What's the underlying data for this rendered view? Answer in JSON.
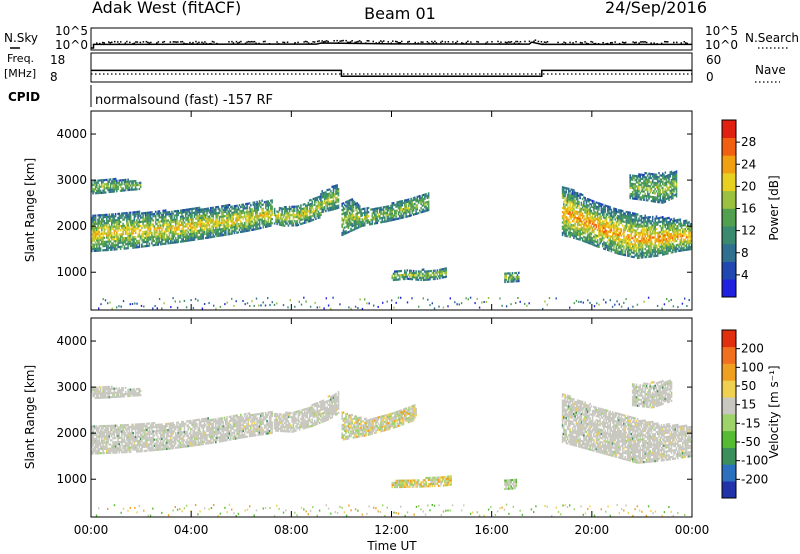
{
  "header": {
    "station": "Adak West (fitACF)",
    "beam": "Beam 01",
    "date": "24/Sep/2016"
  },
  "strips": {
    "nsky_label": "N.Sky",
    "nsearch_label": "N.Search",
    "freq_label_1": "Freq.",
    "freq_label_2": "[MHz]",
    "nave_label": "Nave",
    "cpid_label": "CPID",
    "cpid_text": "normalsound (fast) -157 RF",
    "noise_left_ticks": [
      "10^5",
      "10^0"
    ],
    "noise_right_ticks": [
      "10^5",
      "10^0"
    ],
    "freq_ticks": [
      "18",
      "8"
    ],
    "nave_ticks": [
      "60",
      "0"
    ]
  },
  "colorbars": {
    "power": {
      "label": "Power [dB]",
      "ticks": [
        "28",
        "24",
        "20",
        "16",
        "12",
        "8",
        "4"
      ],
      "colors": [
        "#2020e0",
        "#2048b0",
        "#2f6f90",
        "#3a8a70",
        "#50a050",
        "#9cc040",
        "#e8d020",
        "#f0a010",
        "#f06010",
        "#e02010"
      ]
    },
    "velocity": {
      "label": "Velocity [m s⁻¹]",
      "ticks": [
        "200",
        "100",
        "50",
        "15",
        "-15",
        "-50",
        "-100",
        "-200"
      ],
      "colors": [
        "#2233aa",
        "#2b6fbf",
        "#3a8f5a",
        "#55bb33",
        "#9ed26a",
        "#c8c8c0",
        "#f0d050",
        "#f0a020",
        "#f07020",
        "#e03010"
      ]
    }
  },
  "axes": {
    "xlabel": "Time UT",
    "ylabel": "Slant Range [km]",
    "x_ticks": [
      "00:00",
      "04:00",
      "08:00",
      "12:00",
      "16:00",
      "20:00",
      "00:00"
    ],
    "y_ticks": [
      "1000",
      "2000",
      "3000",
      "4000"
    ]
  },
  "chart_data": [
    {
      "type": "heatmap",
      "quantity": "power",
      "xlim": [
        0,
        24
      ],
      "ylim": [
        180,
        4500
      ],
      "x_unit": "hours UT",
      "y_unit": "km",
      "regions": [
        {
          "x": [
            0.0,
            0.8,
            1.6,
            2.5,
            3.5,
            4.5,
            5.5,
            6.5,
            7.2
          ],
          "lower": [
            1450,
            1480,
            1520,
            1580,
            1650,
            1730,
            1820,
            1920,
            2010
          ],
          "upper": [
            2250,
            2280,
            2300,
            2320,
            2350,
            2400,
            2450,
            2520,
            2580
          ],
          "core": 0.5
        },
        {
          "x": [
            7.3,
            7.7,
            8.2,
            8.7,
            9.2
          ],
          "lower": [
            2050,
            2000,
            2010,
            2100,
            2200
          ],
          "upper": [
            2400,
            2420,
            2450,
            2550,
            2700
          ],
          "core": 0.35
        },
        {
          "x": [
            9.2,
            9.6,
            9.9
          ],
          "lower": [
            2300,
            2350,
            2400
          ],
          "upper": [
            2750,
            2850,
            2900
          ],
          "core": 0.1
        },
        {
          "x": [
            0.0,
            0.5,
            1.0,
            1.5,
            2.0
          ],
          "lower": [
            2700,
            2720,
            2750,
            2780,
            2800
          ],
          "upper": [
            3000,
            3020,
            3020,
            3000,
            2950
          ],
          "core": 0.0
        },
        {
          "x": [
            10.0,
            10.4,
            10.8,
            11.3,
            11.8,
            12.6,
            13.5
          ],
          "lower": [
            1800,
            1900,
            2000,
            2050,
            2100,
            2200,
            2350
          ],
          "upper": [
            2500,
            2600,
            2400,
            2400,
            2450,
            2600,
            2750
          ],
          "core": 0.0
        },
        {
          "x": [
            12.0,
            12.6,
            13.2,
            13.8,
            14.2
          ],
          "lower": [
            820,
            850,
            820,
            850,
            900
          ],
          "upper": [
            1000,
            1050,
            1050,
            1050,
            1100
          ],
          "core": 0.0
        },
        {
          "x": [
            16.5,
            16.8,
            17.1
          ],
          "lower": [
            780,
            790,
            800
          ],
          "upper": [
            1000,
            1000,
            1000
          ],
          "core": 0.0
        },
        {
          "x": [
            18.8,
            19.5,
            20.2,
            21.0,
            21.8,
            22.6,
            23.4,
            24.0
          ],
          "lower": [
            1800,
            1700,
            1550,
            1400,
            1300,
            1350,
            1450,
            1500
          ],
          "upper": [
            2900,
            2700,
            2500,
            2350,
            2250,
            2200,
            2150,
            2100
          ],
          "core": 0.9
        },
        {
          "x": [
            21.5,
            22.2,
            22.8,
            23.4
          ],
          "lower": [
            2600,
            2550,
            2500,
            2650
          ],
          "upper": [
            3100,
            3150,
            3150,
            3200
          ],
          "core": 0.0
        }
      ]
    },
    {
      "type": "heatmap",
      "quantity": "velocity",
      "xlim": [
        0,
        24
      ],
      "ylim": [
        180,
        4500
      ],
      "x_unit": "hours UT",
      "y_unit": "km",
      "regions": [
        {
          "x": [
            0.0,
            1.0,
            2.0,
            3.0,
            4.0,
            5.0,
            6.0,
            7.2
          ],
          "lower": [
            1550,
            1570,
            1600,
            1650,
            1720,
            1800,
            1900,
            2000
          ],
          "upper": [
            2150,
            2180,
            2200,
            2220,
            2280,
            2330,
            2400,
            2480
          ],
          "class": "grey"
        },
        {
          "x": [
            7.3,
            8.0,
            8.8,
            9.5,
            9.9
          ],
          "lower": [
            2050,
            2020,
            2150,
            2300,
            2450
          ],
          "upper": [
            2420,
            2450,
            2600,
            2800,
            2900
          ],
          "class": "grey"
        },
        {
          "x": [
            0.0,
            1.0,
            2.0
          ],
          "lower": [
            2750,
            2780,
            2820
          ],
          "upper": [
            3000,
            3000,
            2950
          ],
          "class": "grey"
        },
        {
          "x": [
            10.0,
            11.0,
            12.0,
            13.0
          ],
          "lower": [
            1850,
            1950,
            2100,
            2300
          ],
          "upper": [
            2450,
            2300,
            2450,
            2650
          ],
          "class": "mixed"
        },
        {
          "x": [
            12.0,
            13.0,
            14.0,
            14.4
          ],
          "lower": [
            820,
            830,
            850,
            880
          ],
          "upper": [
            950,
            1000,
            1050,
            1100
          ],
          "class": "green-orange"
        },
        {
          "x": [
            16.5,
            17.0
          ],
          "lower": [
            780,
            800
          ],
          "upper": [
            1000,
            1000
          ],
          "class": "grey-green"
        },
        {
          "x": [
            18.8,
            19.8,
            20.8,
            21.8,
            22.8,
            24.0
          ],
          "lower": [
            1800,
            1650,
            1500,
            1350,
            1400,
            1500
          ],
          "upper": [
            2850,
            2650,
            2450,
            2300,
            2200,
            2150
          ],
          "class": "grey"
        },
        {
          "x": [
            21.6,
            22.4,
            23.2
          ],
          "lower": [
            2600,
            2550,
            2700
          ],
          "upper": [
            3050,
            3100,
            3150
          ],
          "class": "grey"
        }
      ]
    },
    {
      "type": "line",
      "quantity": "frequency",
      "unit": "MHz",
      "ylim": [
        8,
        18
      ],
      "x": [
        0,
        10,
        10,
        18,
        18,
        24
      ],
      "y": [
        12,
        12,
        10,
        10,
        12,
        12
      ]
    },
    {
      "type": "line",
      "quantity": "noise",
      "x": [
        0,
        0.1,
        0.1,
        9.0,
        9.2,
        12.0,
        17.5,
        17.6,
        18.0,
        24.0
      ],
      "y": [
        1,
        1,
        10,
        12,
        25,
        14,
        12,
        40,
        10,
        10
      ]
    }
  ]
}
